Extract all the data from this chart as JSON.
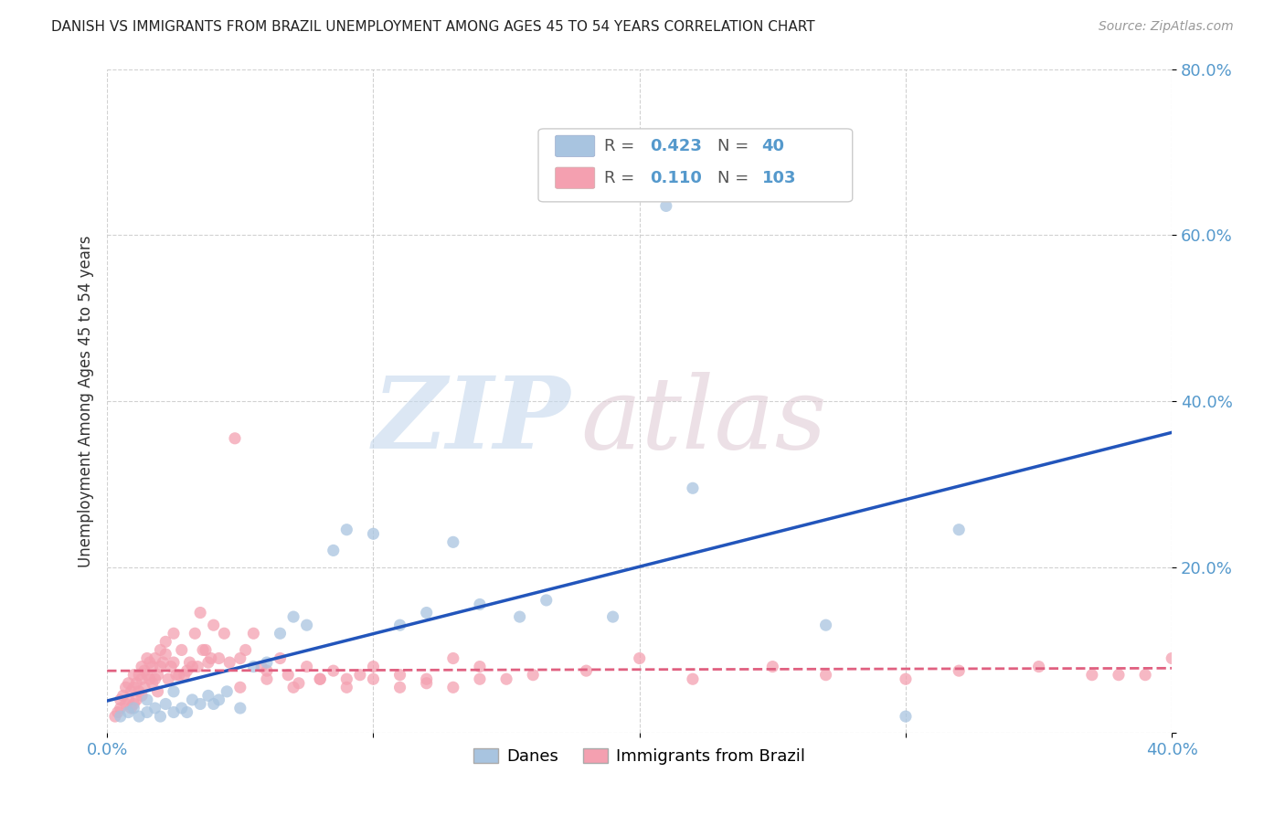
{
  "title": "DANISH VS IMMIGRANTS FROM BRAZIL UNEMPLOYMENT AMONG AGES 45 TO 54 YEARS CORRELATION CHART",
  "source": "Source: ZipAtlas.com",
  "ylabel": "Unemployment Among Ages 45 to 54 years",
  "xlim": [
    0.0,
    0.4
  ],
  "ylim": [
    0.0,
    0.8
  ],
  "danes_color": "#a8c4e0",
  "brazil_color": "#f4a0b0",
  "danes_line_color": "#2255bb",
  "brazil_line_color": "#e06080",
  "danes_R": 0.423,
  "danes_N": 40,
  "brazil_R": 0.11,
  "brazil_N": 103,
  "background_color": "#ffffff",
  "tick_color": "#5599cc",
  "danes_x": [
    0.005,
    0.008,
    0.01,
    0.012,
    0.015,
    0.015,
    0.018,
    0.02,
    0.022,
    0.025,
    0.025,
    0.028,
    0.03,
    0.032,
    0.035,
    0.038,
    0.04,
    0.042,
    0.045,
    0.05,
    0.055,
    0.06,
    0.065,
    0.07,
    0.075,
    0.085,
    0.09,
    0.1,
    0.11,
    0.12,
    0.13,
    0.14,
    0.155,
    0.165,
    0.19,
    0.21,
    0.22,
    0.27,
    0.3,
    0.32
  ],
  "danes_y": [
    0.02,
    0.025,
    0.03,
    0.02,
    0.025,
    0.04,
    0.03,
    0.02,
    0.035,
    0.025,
    0.05,
    0.03,
    0.025,
    0.04,
    0.035,
    0.045,
    0.035,
    0.04,
    0.05,
    0.03,
    0.08,
    0.085,
    0.12,
    0.14,
    0.13,
    0.22,
    0.245,
    0.24,
    0.13,
    0.145,
    0.23,
    0.155,
    0.14,
    0.16,
    0.14,
    0.635,
    0.295,
    0.13,
    0.02,
    0.245
  ],
  "brazil_x": [
    0.003,
    0.004,
    0.005,
    0.005,
    0.006,
    0.007,
    0.007,
    0.008,
    0.008,
    0.009,
    0.009,
    0.01,
    0.01,
    0.01,
    0.011,
    0.011,
    0.012,
    0.012,
    0.013,
    0.013,
    0.013,
    0.014,
    0.014,
    0.015,
    0.015,
    0.016,
    0.016,
    0.017,
    0.017,
    0.018,
    0.018,
    0.019,
    0.019,
    0.02,
    0.02,
    0.021,
    0.022,
    0.022,
    0.023,
    0.024,
    0.025,
    0.025,
    0.026,
    0.027,
    0.028,
    0.029,
    0.03,
    0.031,
    0.032,
    0.033,
    0.034,
    0.035,
    0.036,
    0.037,
    0.038,
    0.039,
    0.04,
    0.042,
    0.044,
    0.046,
    0.048,
    0.05,
    0.052,
    0.055,
    0.058,
    0.06,
    0.065,
    0.068,
    0.072,
    0.075,
    0.08,
    0.085,
    0.09,
    0.095,
    0.1,
    0.11,
    0.12,
    0.13,
    0.14,
    0.15,
    0.16,
    0.18,
    0.2,
    0.22,
    0.25,
    0.27,
    0.3,
    0.32,
    0.35,
    0.37,
    0.38,
    0.39,
    0.4,
    0.05,
    0.06,
    0.07,
    0.08,
    0.09,
    0.1,
    0.11,
    0.12,
    0.13,
    0.14
  ],
  "brazil_y": [
    0.02,
    0.025,
    0.03,
    0.04,
    0.045,
    0.035,
    0.055,
    0.04,
    0.06,
    0.03,
    0.05,
    0.035,
    0.055,
    0.07,
    0.04,
    0.06,
    0.05,
    0.07,
    0.045,
    0.065,
    0.08,
    0.055,
    0.075,
    0.07,
    0.09,
    0.065,
    0.085,
    0.06,
    0.08,
    0.065,
    0.09,
    0.05,
    0.07,
    0.08,
    0.1,
    0.085,
    0.095,
    0.11,
    0.065,
    0.08,
    0.085,
    0.12,
    0.07,
    0.07,
    0.1,
    0.07,
    0.075,
    0.085,
    0.08,
    0.12,
    0.08,
    0.145,
    0.1,
    0.1,
    0.085,
    0.09,
    0.13,
    0.09,
    0.12,
    0.085,
    0.355,
    0.09,
    0.1,
    0.12,
    0.08,
    0.075,
    0.09,
    0.07,
    0.06,
    0.08,
    0.065,
    0.075,
    0.065,
    0.07,
    0.08,
    0.07,
    0.06,
    0.09,
    0.08,
    0.065,
    0.07,
    0.075,
    0.09,
    0.065,
    0.08,
    0.07,
    0.065,
    0.075,
    0.08,
    0.07,
    0.07,
    0.07,
    0.09,
    0.055,
    0.065,
    0.055,
    0.065,
    0.055,
    0.065,
    0.055,
    0.065,
    0.055,
    0.065
  ]
}
